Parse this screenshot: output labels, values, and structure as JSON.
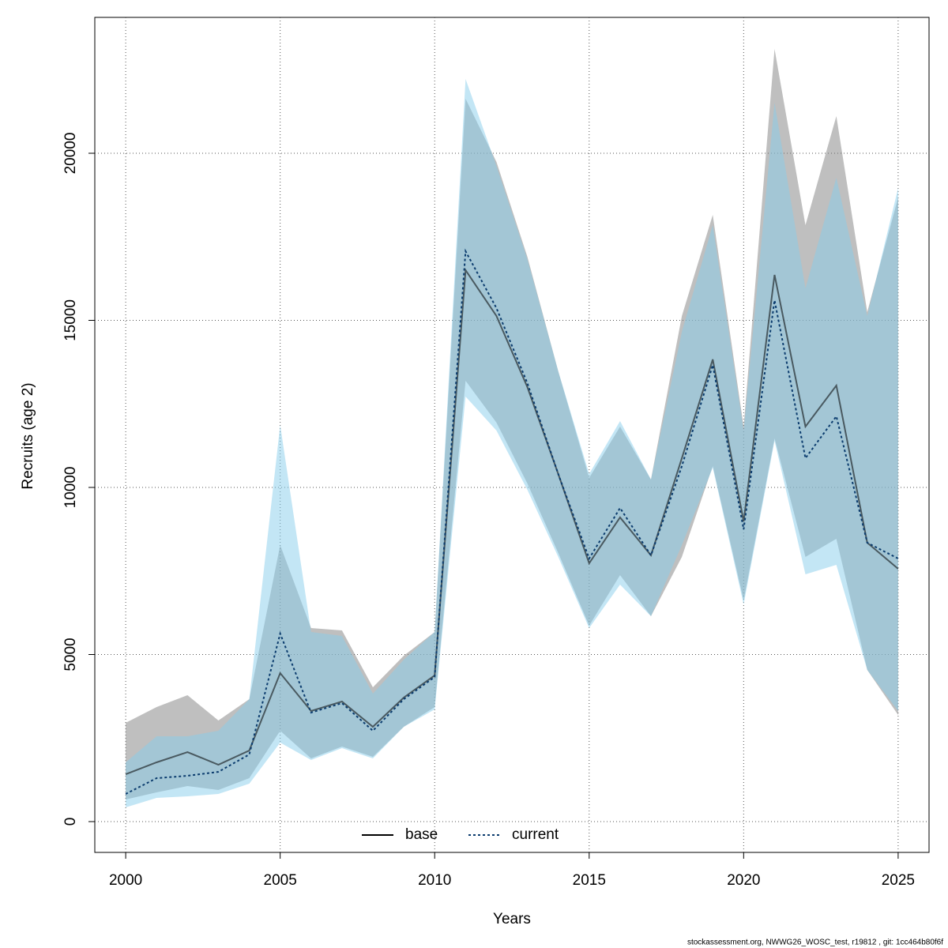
{
  "chart_data": {
    "type": "line-band",
    "x_label": "Years",
    "y_label": "Recruits (age 2)",
    "footer": "stockassessment.org, NWWG26_WOSC_test, r19812 , git: 1cc464b80f6f",
    "x": [
      2000,
      2001,
      2002,
      2003,
      2004,
      2005,
      2006,
      2007,
      2008,
      2009,
      2010,
      2011,
      2012,
      2013,
      2014,
      2015,
      2016,
      2017,
      2018,
      2019,
      2020,
      2021,
      2022,
      2023,
      2024,
      2025
    ],
    "xlim": [
      1999,
      2026
    ],
    "xticks": [
      2000,
      2005,
      2010,
      2015,
      2020,
      2025
    ],
    "ylim": [
      -922,
      24066
    ],
    "yticks": [
      0,
      5000,
      10000,
      15000,
      20000
    ],
    "grid": true,
    "legend": "bottom",
    "series": [
      {
        "name": "base",
        "color": "#000000",
        "dash": false,
        "band_color": "#7f7f7f",
        "values": [
          1418,
          1773,
          2080,
          1702,
          2128,
          4444,
          3310,
          3593,
          2837,
          3712,
          4374,
          16501,
          15130,
          13002,
          10400,
          7730,
          9102,
          7967,
          10875,
          13830,
          8983,
          16359,
          11820,
          13050,
          8345,
          7565
        ],
        "upper": [
          2955,
          3428,
          3783,
          3026,
          3664,
          8274,
          5792,
          5721,
          4019,
          4965,
          5674,
          21631,
          19740,
          16903,
          13475,
          10284,
          11820,
          10236,
          15130,
          18156,
          11820,
          23121,
          17849,
          21111,
          15248,
          18676
        ],
        "lower": [
          662,
          875,
          1064,
          946,
          1300,
          2719,
          1891,
          2246,
          1939,
          2837,
          3428,
          13191,
          11939,
          10118,
          8038,
          5863,
          7376,
          6147,
          7920,
          10638,
          6619,
          11466,
          7920,
          8463,
          4539,
          3191
        ]
      },
      {
        "name": "current",
        "color": "#0b3c6e",
        "dash": true,
        "band_color": "#87ceeb",
        "values": [
          827,
          1300,
          1371,
          1489,
          2009,
          5626,
          3262,
          3546,
          2719,
          3664,
          4326,
          17069,
          15366,
          13120,
          10400,
          7872,
          9385,
          7967,
          10638,
          13664,
          8747,
          15602,
          10875,
          12128,
          8345,
          7872
        ],
        "upper": [
          1773,
          2553,
          2553,
          2719,
          3664,
          11868,
          5674,
          5556,
          3830,
          4846,
          5674,
          22222,
          19622,
          16832,
          13475,
          10402,
          11986,
          10236,
          14657,
          17849,
          11702,
          21513,
          15957,
          19267,
          15130,
          18960
        ],
        "lower": [
          425,
          709,
          757,
          827,
          1135,
          2364,
          1844,
          2199,
          1891,
          2837,
          3357,
          12719,
          11702,
          9929,
          7920,
          5792,
          7092,
          6147,
          8274,
          10591,
          6501,
          11395,
          7400,
          7683,
          4539,
          3310
        ]
      }
    ]
  }
}
